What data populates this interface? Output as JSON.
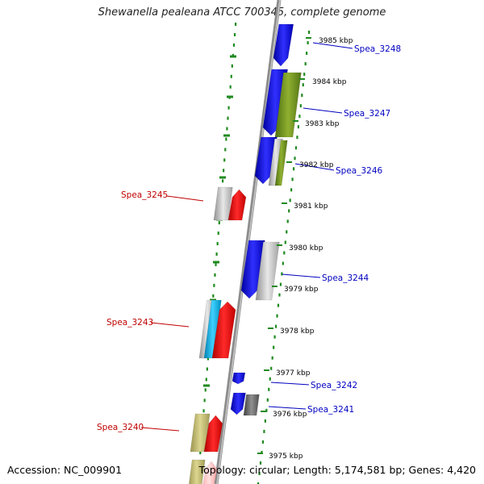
{
  "title": "Shewanella pealeana ATCC 700345, complete genome",
  "footer": {
    "accession": "Accession: NC_009901",
    "topology": "Topology: circular; Length: 5,174,581 bp; Genes: 4,420"
  },
  "colors": {
    "background": "#ffffff",
    "backbone": "#8c8c8c",
    "ring_dots": "#1f8a1f",
    "forward_gene": "#1010e0",
    "reverse_gene": "#e01010",
    "pseudo_gray": "#b8b8b8",
    "olive": "#6b8e23",
    "khaki": "#bdb76b",
    "cyan": "#18b0e0",
    "right_label": "#0000c0",
    "left_label": "#c00000"
  },
  "kbp_ticks": [
    "3985 kbp",
    "3984 kbp",
    "3983 kbp",
    "3982 kbp",
    "3981 kbp",
    "3980 kbp",
    "3979 kbp",
    "3978 kbp",
    "3977 kbp",
    "3976 kbp",
    "3975 kbp"
  ],
  "gene_labels_right": [
    "Spea_3248",
    "Spea_3247",
    "Spea_3246",
    "Spea_3244",
    "Spea_3242",
    "Spea_3241"
  ],
  "gene_labels_left": [
    "Spea_3245",
    "Spea_3243",
    "Spea_3240"
  ],
  "icons": [
    "genome-backbone-icon",
    "gene-arrow-icon"
  ]
}
